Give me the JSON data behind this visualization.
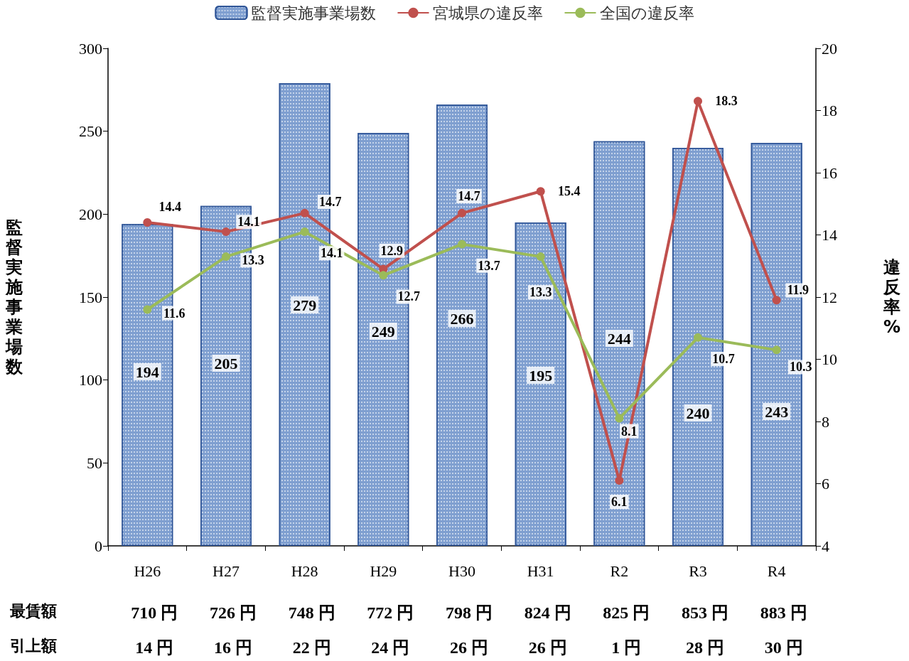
{
  "chart_data": {
    "type": "bar",
    "categories": [
      "H26",
      "H27",
      "H28",
      "H29",
      "H30",
      "H31",
      "R2",
      "R3",
      "R4"
    ],
    "series": [
      {
        "name": "監督実施事業場数",
        "color": "#7f9fd0",
        "values": [
          194,
          205,
          279,
          249,
          266,
          195,
          244,
          240,
          243
        ]
      },
      {
        "name": "宮城県の違反率",
        "type": "line",
        "axis": "y2",
        "color": "#c0504d",
        "values": [
          14.4,
          14.1,
          14.7,
          12.9,
          14.7,
          15.4,
          6.1,
          18.3,
          11.9
        ]
      },
      {
        "name": "全国の違反率",
        "type": "line",
        "axis": "y2",
        "color": "#9bbb59",
        "values": [
          11.6,
          13.3,
          14.1,
          12.7,
          13.7,
          13.3,
          8.1,
          10.7,
          10.3
        ]
      }
    ],
    "ylabel": "監督実施事業場数",
    "y2label": "違反率%",
    "ylim": [
      0,
      300
    ],
    "yticks": [
      0,
      50,
      100,
      150,
      200,
      250,
      300
    ],
    "y2lim": [
      4,
      20
    ],
    "y2ticks": [
      4,
      6,
      8,
      10,
      12,
      14,
      16,
      18,
      20
    ],
    "data_labels": true,
    "legend": "top",
    "grid": false,
    "marker": "circle",
    "annotations": [
      "最賃額",
      "710 円",
      "726 円",
      "748 円",
      "772 円",
      "798 円",
      "824 円",
      "825 円",
      "853 円",
      "883 円",
      "引上額",
      "14 円",
      "16 円",
      "22 円",
      "24 円",
      "26 円",
      "26 円",
      "1 円",
      "28 円",
      "30 円"
    ]
  }
}
